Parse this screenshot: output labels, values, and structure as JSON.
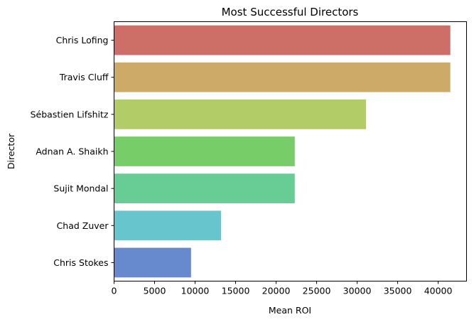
{
  "chart_data": {
    "type": "bar",
    "orientation": "horizontal",
    "title": "Most Successful Directors",
    "xlabel": "Mean ROI",
    "ylabel": "Director",
    "categories": [
      "Chris Lofing",
      "Travis Cluff",
      "Sébastien Lifshitz",
      "Adnan A. Shaikh",
      "Sujit Mondal",
      "Chad Zuver",
      "Chris Stokes"
    ],
    "values": [
      41500,
      41500,
      31100,
      22300,
      22300,
      13200,
      9500
    ],
    "colors": [
      "#cd6e67",
      "#cdaa67",
      "#b2cd67",
      "#77cd67",
      "#67cd94",
      "#67c6cd",
      "#6789cd"
    ],
    "xlim": [
      0,
      43500
    ],
    "xticks": [
      0,
      5000,
      10000,
      15000,
      20000,
      25000,
      30000,
      35000,
      40000
    ],
    "xtick_labels": [
      "0",
      "5000",
      "10000",
      "15000",
      "20000",
      "25000",
      "30000",
      "35000",
      "40000"
    ],
    "grid": false,
    "legend": "none"
  }
}
